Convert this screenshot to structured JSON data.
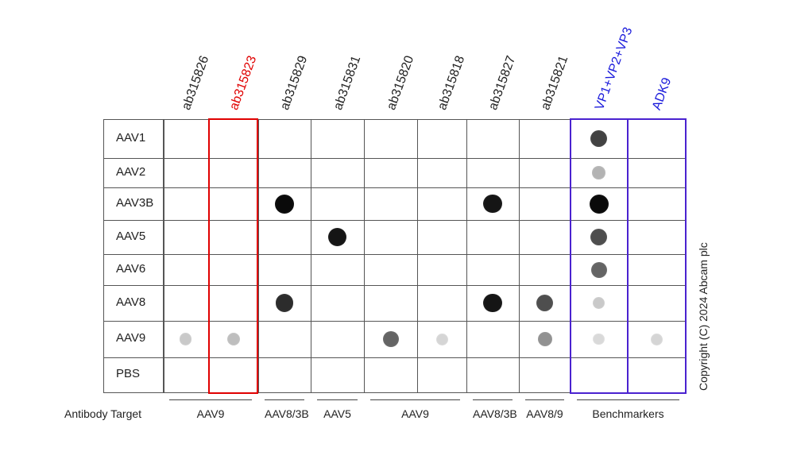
{
  "columns": [
    {
      "label": "ab315826",
      "color": "#222222"
    },
    {
      "label": "ab315823",
      "color": "#e00000"
    },
    {
      "label": "ab315829",
      "color": "#222222"
    },
    {
      "label": "ab315831",
      "color": "#222222"
    },
    {
      "label": "ab315820",
      "color": "#222222"
    },
    {
      "label": "ab315818",
      "color": "#222222"
    },
    {
      "label": "ab315827",
      "color": "#222222"
    },
    {
      "label": "ab315821",
      "color": "#222222"
    },
    {
      "label": "VP1+VP2+VP3",
      "color": "#1a1adb"
    },
    {
      "label": "ADK9",
      "color": "#1a1adb"
    }
  ],
  "rows": [
    "AAV1",
    "AAV2",
    "AAV3B",
    "AAV5",
    "AAV6",
    "AAV8",
    "AAV9",
    "PBS"
  ],
  "antibody_target_heading": "Antibody Target",
  "antibody_targets": [
    {
      "label": "AAV9",
      "columns": [
        0,
        1
      ]
    },
    {
      "label": "AAV8/3B",
      "columns": [
        2
      ]
    },
    {
      "label": "AAV5",
      "columns": [
        3
      ]
    },
    {
      "label": "AAV9",
      "columns": [
        4,
        5
      ]
    },
    {
      "label": "AAV8/3B",
      "columns": [
        6
      ]
    },
    {
      "label": "AAV8/9",
      "columns": [
        7
      ]
    },
    {
      "label": "Benchmarkers",
      "columns": [
        8,
        9
      ]
    }
  ],
  "copyright": "Copyright (C) 2024 Abcam plc",
  "colors": {
    "red_box": "#e00000",
    "blue_box": "#4a22d0",
    "dot": "#111111"
  },
  "dots": [
    {
      "row": 2,
      "col": 2,
      "intensity": 1.0
    },
    {
      "row": 2,
      "col": 6,
      "intensity": 0.95
    },
    {
      "row": 3,
      "col": 3,
      "intensity": 0.95
    },
    {
      "row": 5,
      "col": 2,
      "intensity": 0.85
    },
    {
      "row": 5,
      "col": 6,
      "intensity": 0.95
    },
    {
      "row": 5,
      "col": 7,
      "intensity": 0.7
    },
    {
      "row": 6,
      "col": 0,
      "intensity": 0.15
    },
    {
      "row": 6,
      "col": 1,
      "intensity": 0.2
    },
    {
      "row": 6,
      "col": 4,
      "intensity": 0.6
    },
    {
      "row": 6,
      "col": 5,
      "intensity": 0.1
    },
    {
      "row": 6,
      "col": 7,
      "intensity": 0.4
    },
    {
      "row": 0,
      "col": 8,
      "intensity": 0.75
    },
    {
      "row": 1,
      "col": 8,
      "intensity": 0.25
    },
    {
      "row": 2,
      "col": 8,
      "intensity": 1.0
    },
    {
      "row": 3,
      "col": 8,
      "intensity": 0.7
    },
    {
      "row": 4,
      "col": 8,
      "intensity": 0.6
    },
    {
      "row": 5,
      "col": 8,
      "intensity": 0.15
    },
    {
      "row": 6,
      "col": 8,
      "intensity": 0.08
    },
    {
      "row": 6,
      "col": 9,
      "intensity": 0.1
    }
  ]
}
